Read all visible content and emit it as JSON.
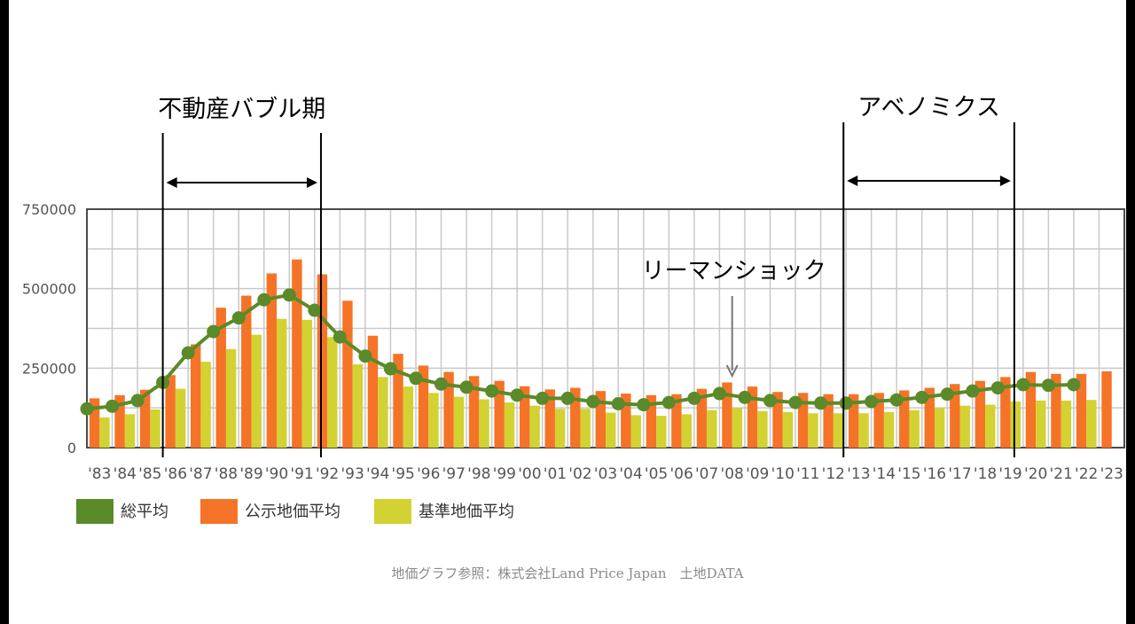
{
  "chart_data": {
    "type": "bar",
    "categories": [
      "'83",
      "'84",
      "'85",
      "'86",
      "'87",
      "'88",
      "'89",
      "'90",
      "'91",
      "'92",
      "'93",
      "'94",
      "'95",
      "'96",
      "'97",
      "'98",
      "'99",
      "'00",
      "'01",
      "'02",
      "'03",
      "'04",
      "'05",
      "'06",
      "'07",
      "'08",
      "'09",
      "'10",
      "'11",
      "'12",
      "'13",
      "'14",
      "'15",
      "'16",
      "'17",
      "'18",
      "'19",
      "'20",
      "'21",
      "'22",
      "'23"
    ],
    "y_ticks": [
      "750000",
      "500000",
      "250000",
      "0"
    ],
    "ylim": [
      0,
      750000
    ],
    "grid": true,
    "legend_position": "bottom-left",
    "series": [
      {
        "name": "公示地価平均",
        "kind": "bar",
        "color": "#f57327",
        "values": [
          155000,
          165000,
          182000,
          228000,
          325000,
          440000,
          478000,
          548000,
          592000,
          545000,
          462000,
          352000,
          295000,
          258000,
          238000,
          225000,
          210000,
          193000,
          183000,
          188000,
          178000,
          170000,
          165000,
          168000,
          185000,
          205000,
          192000,
          175000,
          172000,
          168000,
          168000,
          172000,
          180000,
          188000,
          200000,
          210000,
          222000,
          238000,
          232000,
          232000,
          240000
        ]
      },
      {
        "name": "基準地価平均",
        "kind": "bar",
        "color": "#d2d232",
        "values": [
          95000,
          105000,
          120000,
          185000,
          270000,
          310000,
          355000,
          405000,
          402000,
          348000,
          262000,
          222000,
          192000,
          172000,
          160000,
          152000,
          142000,
          132000,
          122000,
          122000,
          110000,
          102000,
          100000,
          105000,
          118000,
          125000,
          115000,
          112000,
          108000,
          108000,
          108000,
          112000,
          118000,
          125000,
          132000,
          135000,
          145000,
          148000,
          148000,
          150000,
          null
        ]
      },
      {
        "name": "総平均",
        "kind": "line",
        "color": "#5a8a2a",
        "values": [
          122000,
          130000,
          148000,
          205000,
          298000,
          365000,
          408000,
          465000,
          480000,
          432000,
          348000,
          288000,
          248000,
          218000,
          200000,
          190000,
          178000,
          165000,
          155000,
          155000,
          145000,
          138000,
          135000,
          142000,
          155000,
          170000,
          158000,
          148000,
          142000,
          140000,
          140000,
          145000,
          150000,
          158000,
          168000,
          178000,
          188000,
          198000,
          196000,
          198000,
          null
        ]
      }
    ],
    "annotations": [
      {
        "label": "不動産バブル期",
        "from": "'86",
        "to": "'92"
      },
      {
        "label": "アベノミクス",
        "from": "'13",
        "to": "'19"
      },
      {
        "label": "リーマンショック",
        "at": "'08"
      }
    ]
  },
  "credit": "地価グラフ参照：株式会社Land Price Japan　土地DATA"
}
